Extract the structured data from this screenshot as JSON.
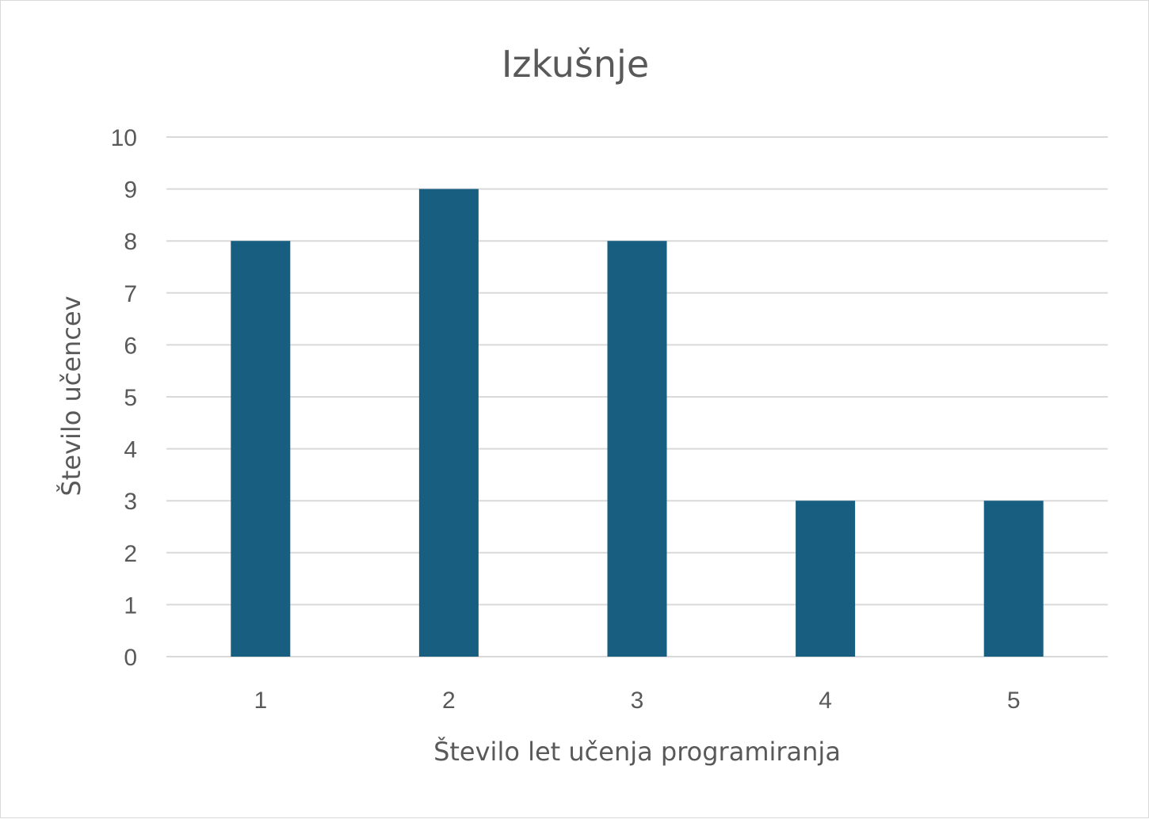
{
  "chart_data": {
    "type": "bar",
    "title": "Izkušnje",
    "xlabel": "Število let učenja programiranja",
    "ylabel": "Število učencev",
    "categories": [
      "1",
      "2",
      "3",
      "4",
      "5"
    ],
    "values": [
      8,
      9,
      8,
      3,
      3
    ],
    "ylim": [
      0,
      10
    ],
    "yticks": [
      "0",
      "1",
      "2",
      "3",
      "4",
      "5",
      "6",
      "7",
      "8",
      "9",
      "10"
    ],
    "grid": true,
    "legend": "none",
    "bar_color": "#175e80",
    "grid_color": "#d9d9d9",
    "text_color": "#595959"
  }
}
